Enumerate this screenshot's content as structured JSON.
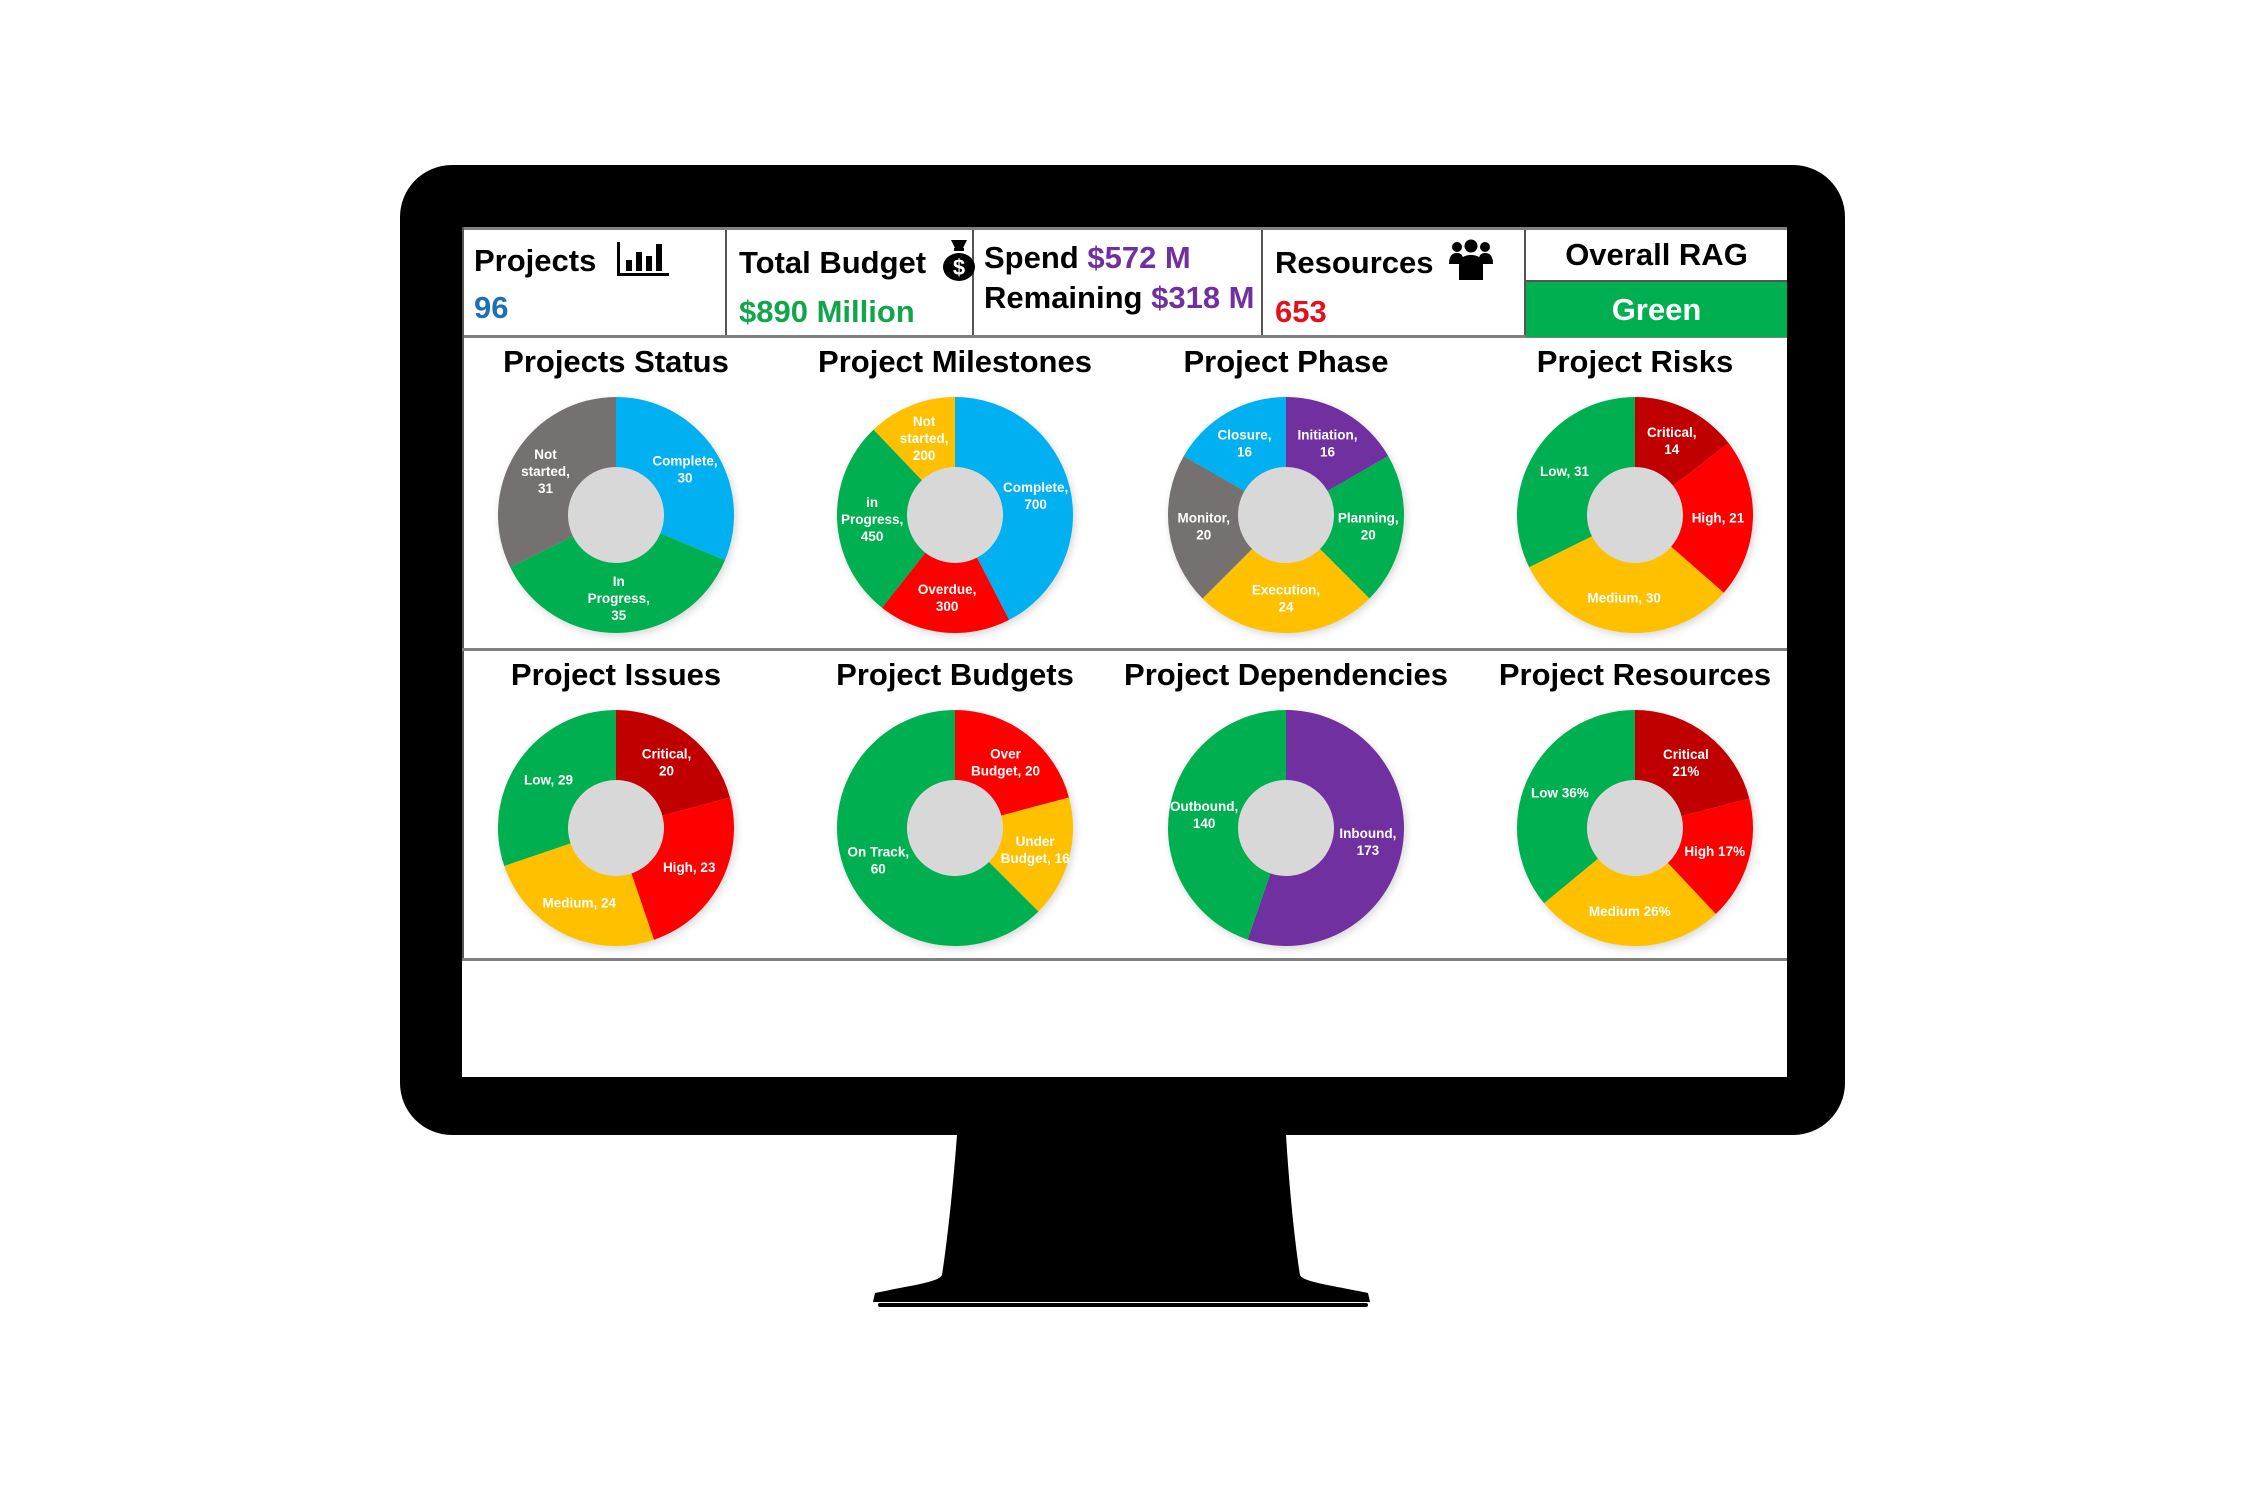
{
  "kpis": {
    "projects": {
      "label": "Projects",
      "value": "96",
      "value_color": "#1f6fb8",
      "icon": "bar-chart-icon"
    },
    "total_budget": {
      "label": "Total Budget",
      "value": "$890 Million",
      "value_color": "#12a54b",
      "icon": "money-bag-icon"
    },
    "spend": {
      "label": "Spend",
      "value": "$572 M",
      "value_color": "#7030a0"
    },
    "remaining": {
      "label": "Remaining",
      "value": "$318 M",
      "value_color": "#7030a0"
    },
    "resources": {
      "label": "Resources",
      "value": "653",
      "value_color": "#e0131b",
      "icon": "people-icon"
    },
    "overall_rag": {
      "label": "Overall RAG",
      "value": "Green",
      "bg_color": "#00b050"
    }
  },
  "colors": {
    "blue": "#00b0f0",
    "green": "#00b050",
    "grey": "#767171",
    "yellow": "#ffc000",
    "red": "#ff0000",
    "dark_red": "#c00000",
    "purple": "#7030a0"
  },
  "chart_data": [
    {
      "type": "pie",
      "title": "Projects Status",
      "categories": [
        "Complete",
        "In Progress",
        "Not started"
      ],
      "values": [
        30,
        35,
        31
      ],
      "labels": [
        "Complete, 30",
        "In Progress, 35",
        "Not started, 31"
      ],
      "colors": [
        "#00b0f0",
        "#00b050",
        "#767171"
      ],
      "donut": true
    },
    {
      "type": "pie",
      "title": "Project Milestones",
      "categories": [
        "Complete",
        "Overdue",
        "in Progress",
        "Not started"
      ],
      "values": [
        700,
        300,
        450,
        200
      ],
      "labels": [
        "Complete, 700",
        "Overdue, 300",
        "in Progress, 450",
        "Not started, 200"
      ],
      "colors": [
        "#00b0f0",
        "#ff0000",
        "#00b050",
        "#ffc000"
      ],
      "donut": true
    },
    {
      "type": "pie",
      "title": "Project Phase",
      "categories": [
        "Initiation",
        "Planning",
        "Execution",
        "Monitor",
        "Closure"
      ],
      "values": [
        16,
        20,
        24,
        20,
        16
      ],
      "labels": [
        "Initiation, 16",
        "Planning, 20",
        "Execution, 24",
        "Monitor, 20",
        "Closure, 16"
      ],
      "colors": [
        "#7030a0",
        "#00b050",
        "#ffc000",
        "#767171",
        "#00b0f0"
      ],
      "donut": true
    },
    {
      "type": "pie",
      "title": "Project Risks",
      "categories": [
        "Critical",
        "High",
        "Medium",
        "Low"
      ],
      "values": [
        14,
        21,
        30,
        31
      ],
      "labels": [
        "Critical, 14",
        "High, 21",
        "Medium, 30",
        "Low, 31"
      ],
      "colors": [
        "#c00000",
        "#ff0000",
        "#ffc000",
        "#00b050"
      ],
      "donut": true
    },
    {
      "type": "pie",
      "title": "Project Issues",
      "categories": [
        "Critical",
        "High",
        "Medium",
        "Low"
      ],
      "values": [
        20,
        23,
        24,
        29
      ],
      "labels": [
        "Critical, 20",
        "High, 23",
        "Medium, 24",
        "Low, 29"
      ],
      "colors": [
        "#c00000",
        "#ff0000",
        "#ffc000",
        "#00b050"
      ],
      "donut": true
    },
    {
      "type": "pie",
      "title": "Project Budgets",
      "categories": [
        "Over Budget",
        "Under Budget",
        "On Track"
      ],
      "values": [
        20,
        16,
        60
      ],
      "labels": [
        "Over Budget, 20",
        "Under Budget, 16",
        "On Track, 60"
      ],
      "colors": [
        "#ff0000",
        "#ffc000",
        "#00b050"
      ],
      "donut": true
    },
    {
      "type": "pie",
      "title": "Project Dependencies",
      "categories": [
        "Inbound",
        "Outbound"
      ],
      "values": [
        173,
        140
      ],
      "labels": [
        "Inbound, 173",
        "Outbound, 140"
      ],
      "colors": [
        "#7030a0",
        "#00b050"
      ],
      "donut": true
    },
    {
      "type": "pie",
      "title": "Project Resources",
      "categories": [
        "Critical",
        "High",
        "Medium",
        "Low"
      ],
      "values": [
        21,
        17,
        26,
        36
      ],
      "labels": [
        "Critical 21%",
        "High 17%",
        "Medium 26%",
        "Low 36%"
      ],
      "colors": [
        "#c00000",
        "#ff0000",
        "#ffc000",
        "#00b050"
      ],
      "donut": true
    }
  ]
}
